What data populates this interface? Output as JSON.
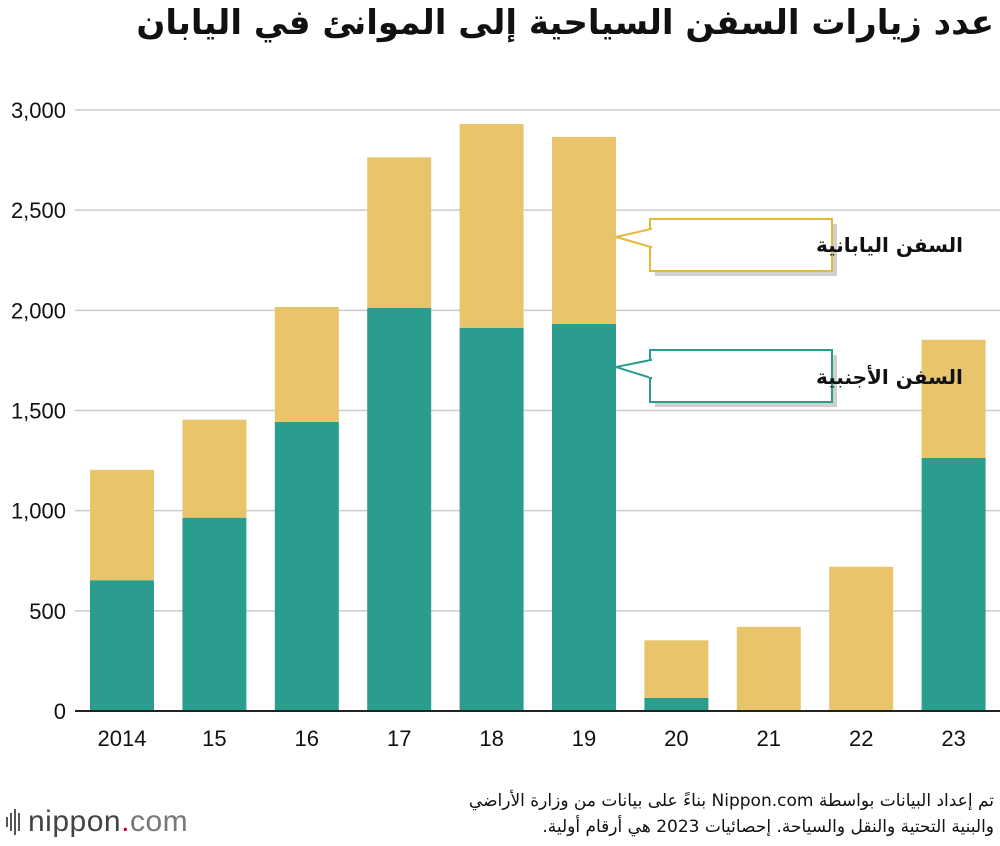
{
  "chart_data": {
    "type": "bar",
    "stacked": true,
    "title": "عدد زيارات السفن السياحية إلى الموانئ في اليابان",
    "categories": [
      "2014",
      "15",
      "16",
      "17",
      "18",
      "19",
      "20",
      "21",
      "22",
      "23"
    ],
    "series": [
      {
        "name": "السفن الأجنبية",
        "color": "#2b9d8e",
        "values": [
          653,
          965,
          1443,
          2013,
          1913,
          1932,
          66,
          0,
          0,
          1263
        ]
      },
      {
        "name": "السفن اليابانية",
        "color": "#e8c56a",
        "values": [
          551,
          489,
          574,
          751,
          1017,
          934,
          287,
          420,
          720,
          590
        ]
      }
    ],
    "ylim": [
      0,
      3000
    ],
    "yticks": [
      0,
      500,
      1000,
      1500,
      2000,
      2500,
      3000
    ],
    "ytick_labels": [
      "0",
      "500",
      "1,000",
      "1,500",
      "2,000",
      "2,500",
      "3,000"
    ],
    "grid": true,
    "legend": "callouts"
  },
  "source_note": {
    "line1": "تم إعداد البيانات بواسطة Nippon.com بناءً على بيانات من وزارة الأراضي",
    "line2": "والبنية التحتية والنقل والسياحة. إحصائيات 2023 هي أرقام أولية."
  },
  "logo": {
    "name": "nippon",
    "dot": ".",
    "tld": "com"
  },
  "colors": {
    "grid": "#cccccc",
    "axis": "#222222",
    "callout_shadow": "#bbbbbb"
  }
}
